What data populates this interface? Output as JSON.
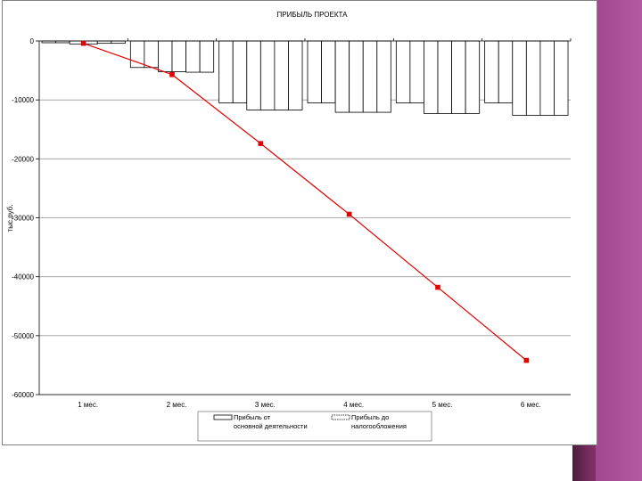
{
  "chart_data": {
    "type": "bar",
    "title": "ПРИБЫЛЬ ПРОЕКТА",
    "ylabel": "тыс.руб.",
    "xlabel": "",
    "ylim": [
      -60000,
      0
    ],
    "yticks": [
      0,
      -10000,
      -20000,
      -30000,
      -40000,
      -50000,
      -60000
    ],
    "categories": [
      "1 мес.",
      "2 мес.",
      "3 мес.",
      "4 мес.",
      "5 мес.",
      "6 мес."
    ],
    "grid": true,
    "legend_position": "bottom",
    "series": [
      {
        "name": "Прибыль от основной деятельности",
        "type": "bar",
        "values": [
          [
            -300,
            -500,
            -400
          ],
          [
            -4500,
            -5200,
            -5300
          ],
          [
            -10500,
            -11700,
            -11700
          ],
          [
            -10500,
            -12100,
            -12100
          ],
          [
            -10500,
            -12300,
            -12300
          ],
          [
            -10500,
            -12600,
            -12600
          ]
        ]
      },
      {
        "name": "Прибыль до налогообложения",
        "type": "bar",
        "values": [
          [
            -300,
            -500,
            -400
          ],
          [
            -4500,
            -5200,
            -5300
          ],
          [
            -10500,
            -11700,
            -11700
          ],
          [
            -10500,
            -12100,
            -12100
          ],
          [
            -10500,
            -12300,
            -12300
          ],
          [
            -10500,
            -12600,
            -12600
          ]
        ]
      },
      {
        "name": "",
        "type": "line",
        "color": "#e00000",
        "values": [
          -400,
          -5700,
          -17400,
          -29400,
          -41800,
          -54200
        ]
      }
    ]
  },
  "legend": {
    "item1_line1": "Прибыль от",
    "item1_line2": "основной деятельности",
    "item2_line1": "Прибыль до",
    "item2_line2": "налогообложения"
  }
}
